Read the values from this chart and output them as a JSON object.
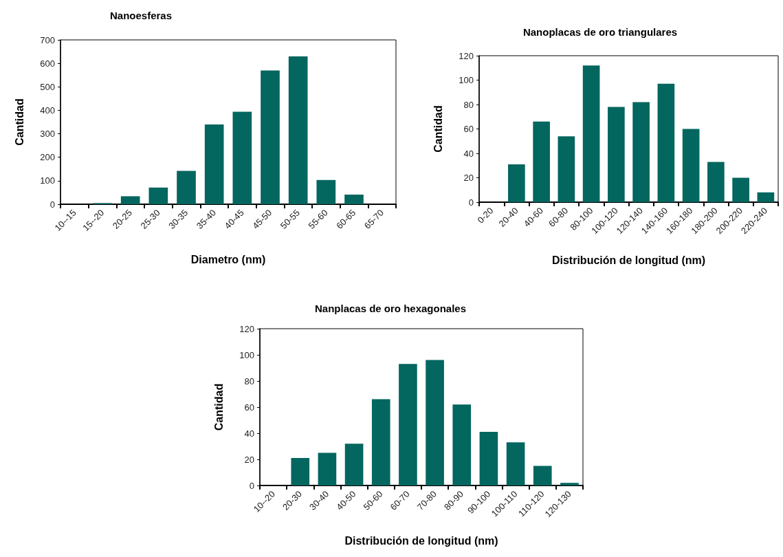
{
  "chart_data": [
    {
      "type": "bar",
      "title": "Nanoesferas",
      "xlabel": "Diametro (nm)",
      "ylabel": "Cantidad",
      "categories": [
        "10--15",
        "15--20",
        "20-25",
        "25-30",
        "30-35",
        "35-40",
        "40-45",
        "45-50",
        "50-55",
        "55-60",
        "60-65",
        "65-70"
      ],
      "values": [
        0,
        5,
        34,
        71,
        142,
        340,
        394,
        570,
        630,
        103,
        41,
        0
      ],
      "color": "#03665f",
      "ylim": [
        0,
        700
      ],
      "yticks": [
        0,
        100,
        200,
        300,
        400,
        500,
        600,
        700
      ],
      "grid": false
    },
    {
      "type": "bar",
      "title": "Nanoplacas de oro triangulares",
      "xlabel": "Distribución de longitud (nm)",
      "ylabel": "Cantidad",
      "categories": [
        "0-20",
        "20-40",
        "40-60",
        "60-80",
        "80-100",
        "100-120",
        "120-140",
        "140-160",
        "160-180",
        "180-200",
        "200-220",
        "220-240"
      ],
      "values": [
        0,
        31,
        66,
        54,
        112,
        78,
        82,
        97,
        60,
        33,
        20,
        8
      ],
      "color": "#03665f",
      "ylim": [
        0,
        120
      ],
      "yticks": [
        0,
        20,
        40,
        60,
        80,
        100,
        120
      ],
      "grid": false
    },
    {
      "type": "bar",
      "title": "Nanplacas de oro hexagonales",
      "xlabel": "Distribución de longitud (nm)",
      "ylabel": "Cantidad",
      "categories": [
        "10--20",
        "20-30",
        "30-40",
        "40-50",
        "50-60",
        "60-70",
        "70-80",
        "80-90",
        "90-100",
        "100-110",
        "110-120",
        "120-130"
      ],
      "values": [
        0,
        21,
        25,
        32,
        66,
        93,
        96,
        62,
        41,
        33,
        15,
        2
      ],
      "color": "#03665f",
      "ylim": [
        0,
        120
      ],
      "yticks": [
        0,
        20,
        40,
        60,
        80,
        100,
        120
      ],
      "grid": false
    }
  ]
}
